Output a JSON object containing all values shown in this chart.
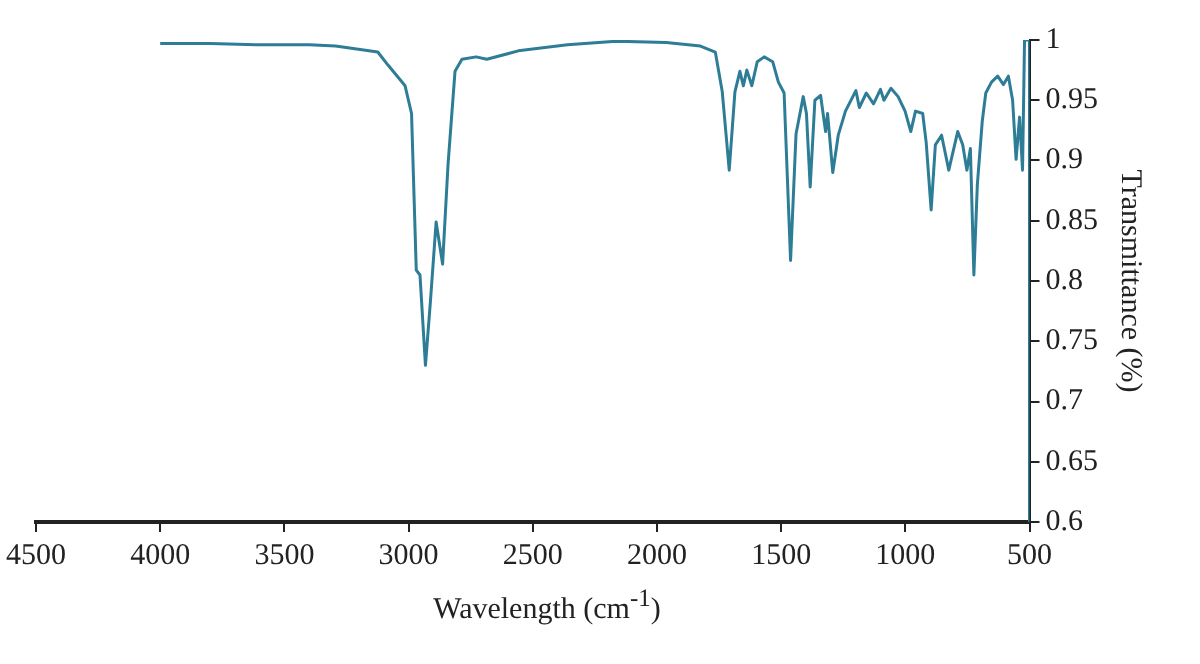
{
  "chart_data": {
    "type": "line",
    "xlabel": "Wavelength (cm$^{-1}$)",
    "ylabel": "Transmittance (%)",
    "xlim": [
      4500,
      500
    ],
    "xticks": [
      4500,
      4000,
      3500,
      3000,
      2500,
      2000,
      1500,
      1000,
      500
    ],
    "ylim": [
      0.6,
      1
    ],
    "yticks": [
      0.6,
      0.65,
      0.7,
      0.75,
      0.8,
      0.85,
      0.9,
      0.95,
      1
    ],
    "grid": false,
    "legend": false,
    "marker": "none",
    "line_style": "solid",
    "series": [
      {
        "color": "#2e7d96",
        "x": [
          4000,
          3800,
          3600,
          3400,
          3294,
          3124,
          3082,
          3014,
          2988,
          2969,
          2954,
          2932,
          2912,
          2889,
          2863,
          2841,
          2813,
          2785,
          2728,
          2685,
          2558,
          2360,
          2164,
          1963,
          1825,
          1765,
          1737,
          1709,
          1686,
          1666,
          1652,
          1638,
          1618,
          1596,
          1568,
          1534,
          1511,
          1488,
          1462,
          1440,
          1411,
          1398,
          1383,
          1364,
          1341,
          1321,
          1313,
          1292,
          1270,
          1241,
          1199,
          1185,
          1157,
          1128,
          1100,
          1086,
          1058,
          1029,
          1001,
          978,
          959,
          930,
          916,
          896,
          879,
          854,
          825,
          789,
          769,
          752,
          738,
          724,
          710,
          690,
          676,
          653,
          628,
          605,
          585,
          568,
          554,
          540,
          528,
          520,
          500,
          500
        ],
        "values": [
          0.997,
          0.997,
          0.996,
          0.996,
          0.995,
          0.99,
          0.979,
          0.962,
          0.939,
          0.809,
          0.805,
          0.73,
          0.783,
          0.849,
          0.814,
          0.897,
          0.974,
          0.984,
          0.986,
          0.984,
          0.991,
          0.996,
          0.999,
          0.998,
          0.995,
          0.99,
          0.957,
          0.892,
          0.957,
          0.974,
          0.962,
          0.975,
          0.962,
          0.982,
          0.986,
          0.982,
          0.965,
          0.956,
          0.817,
          0.922,
          0.953,
          0.939,
          0.878,
          0.95,
          0.954,
          0.924,
          0.939,
          0.89,
          0.921,
          0.941,
          0.958,
          0.944,
          0.956,
          0.947,
          0.959,
          0.95,
          0.96,
          0.953,
          0.941,
          0.924,
          0.941,
          0.939,
          0.915,
          0.859,
          0.913,
          0.921,
          0.892,
          0.924,
          0.913,
          0.892,
          0.91,
          0.805,
          0.88,
          0.933,
          0.956,
          0.965,
          0.97,
          0.963,
          0.97,
          0.95,
          0.901,
          0.936,
          0.892,
          1.0,
          1.0,
          0.6
        ]
      }
    ]
  }
}
